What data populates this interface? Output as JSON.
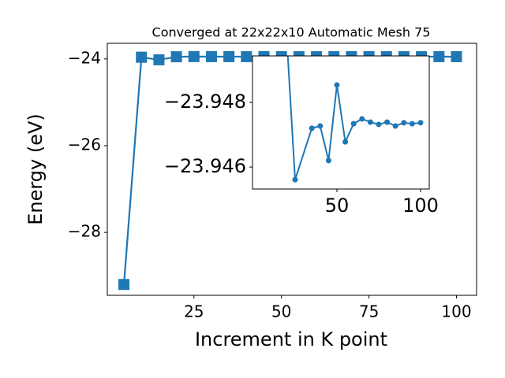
{
  "chart_data": [
    {
      "type": "line",
      "title": "Converged at 22x22x10 Automatic Mesh 75",
      "xlabel": "Increment in K point",
      "ylabel": "Energy (eV)",
      "x": [
        5,
        10,
        15,
        20,
        25,
        30,
        35,
        40,
        45,
        50,
        55,
        60,
        65,
        70,
        75,
        80,
        85,
        90,
        95,
        100
      ],
      "series": [
        {
          "color": "#1f77b4",
          "marker": "square",
          "values": [
            -29.2,
            -23.96,
            -24.02,
            -23.95,
            -23.9456,
            -23.9465,
            -23.9472,
            -23.9473,
            -23.9462,
            -23.9485,
            -23.9468,
            -23.9473,
            -23.9475,
            -23.9474,
            -23.9473,
            -23.9474,
            -23.9473,
            -23.9474,
            -23.9473,
            -23.9474
          ]
        }
      ],
      "xlim": [
        0.25,
        105.75
      ],
      "ylim": [
        -29.45,
        -23.64
      ],
      "xticks": [
        25,
        50,
        75,
        100
      ],
      "yticks": [
        {
          "value": -28,
          "label": "−28"
        },
        {
          "value": -26,
          "label": "−26"
        },
        {
          "value": -24,
          "label": "−24"
        }
      ]
    },
    {
      "type": "line",
      "x": [
        20,
        25,
        35,
        40,
        45,
        50,
        55,
        60,
        65,
        70,
        75,
        80,
        85,
        90,
        95,
        100
      ],
      "series": [
        {
          "color": "#1f77b4",
          "marker": "circle",
          "values": [
            -23.95,
            -23.94561,
            -23.9472,
            -23.94727,
            -23.9462,
            -23.94854,
            -23.94678,
            -23.94734,
            -23.94749,
            -23.94739,
            -23.94732,
            -23.94739,
            -23.94727,
            -23.94737,
            -23.94734,
            -23.94737
          ]
        }
      ],
      "xlim": [
        -0.47,
        105.2
      ],
      "ylim": [
        -23.94532,
        -23.94944
      ],
      "xticks": [
        50,
        100
      ],
      "yticks": [
        {
          "value": -23.948,
          "label": "−23.948"
        },
        {
          "value": -23.946,
          "label": "−23.946"
        }
      ]
    }
  ]
}
